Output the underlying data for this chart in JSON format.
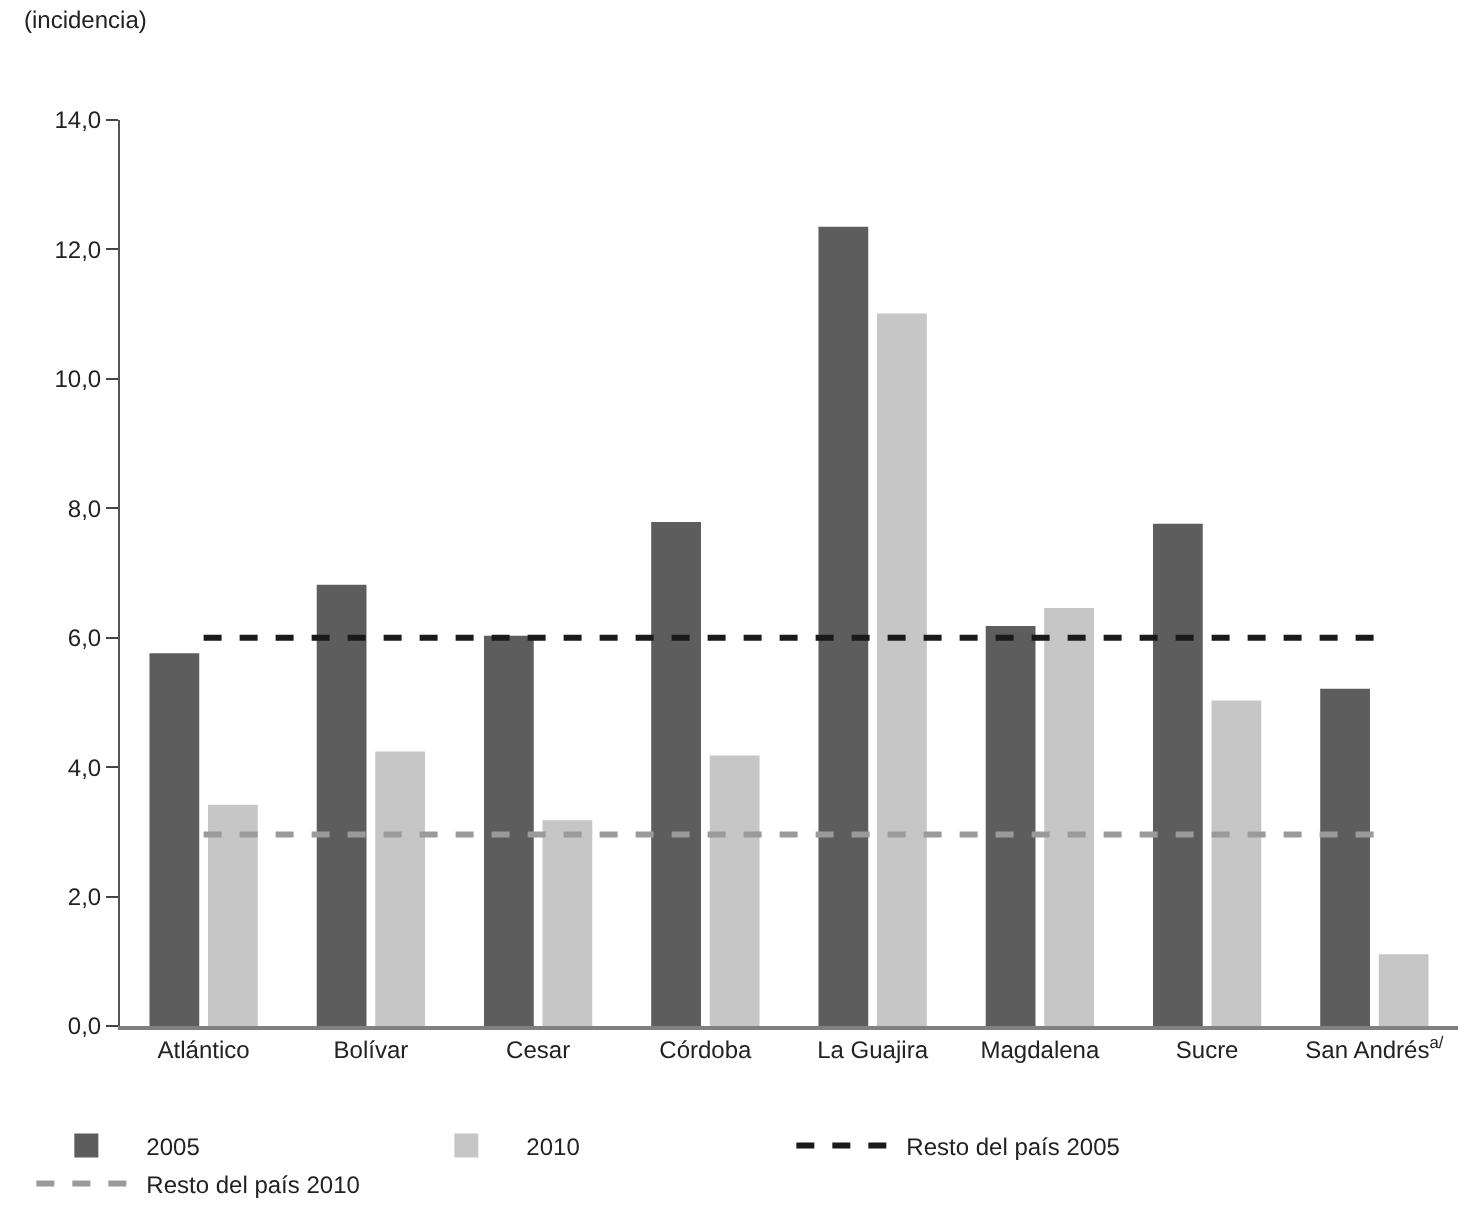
{
  "chart_data": {
    "type": "bar",
    "ylabel": "(incidencia)",
    "categories": [
      "Atlántico",
      "Bolívar",
      "Cesar",
      "Córdoba",
      "La Guajira",
      "Magdalena",
      "Sucre",
      "San Andrés$^{a/}$"
    ],
    "series": [
      {
        "name": "2005",
        "color": "#5d5d5d",
        "values": [
          5.76,
          6.82,
          6.03,
          7.79,
          12.35,
          6.18,
          7.76,
          5.21
        ]
      },
      {
        "name": "2010",
        "color": "#c6c6c6",
        "values": [
          3.42,
          4.24,
          3.18,
          4.18,
          11.01,
          6.46,
          5.03,
          1.11
        ]
      },
      {
        "name": "Resto del país 2005",
        "type": "line",
        "line_style": "dashed",
        "color": "#1a1a1a",
        "values": [
          6.0,
          6.0,
          6.0,
          6.0,
          6.0,
          6.0,
          6.0,
          6.0
        ]
      },
      {
        "name": "Resto del país 2010",
        "type": "line",
        "line_style": "dashed",
        "color": "#9a9a9a",
        "values": [
          2.96,
          2.96,
          2.96,
          2.96,
          2.96,
          2.96,
          2.96,
          2.96
        ]
      }
    ],
    "ylim": [
      0,
      14
    ],
    "yticks": [
      {
        "value": 0,
        "label": "0,0"
      },
      {
        "value": 2,
        "label": "2,0"
      },
      {
        "value": 4,
        "label": "4,0"
      },
      {
        "value": 6,
        "label": "6,0"
      },
      {
        "value": 8,
        "label": "8,0"
      },
      {
        "value": 10,
        "label": "10,0"
      },
      {
        "value": 12,
        "label": "12,0"
      },
      {
        "value": 14,
        "label": "14,0"
      }
    ],
    "legend": "bottom",
    "marker": "none"
  }
}
